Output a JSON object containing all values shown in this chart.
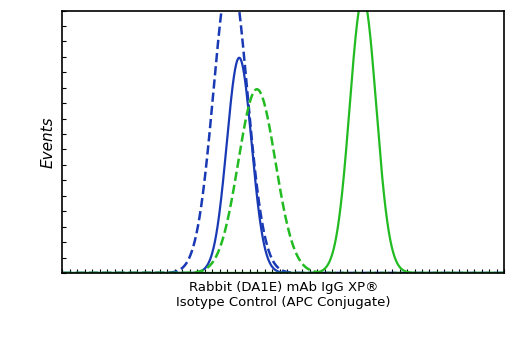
{
  "title": "",
  "xlabel_line1": "Rabbit (DA1E) mAb IgG XP®",
  "xlabel_line2": "Isotype Control (APC Conjugate)",
  "ylabel": "Events",
  "bg_color": "#ffffff",
  "axes_color": "#000000",
  "curves": [
    {
      "mu": 0.4,
      "sigma": 0.028,
      "peak": 0.82,
      "color": "#1a3ab5",
      "linestyle": "solid",
      "linewidth": 1.6,
      "label": "blue_solid"
    },
    {
      "mu": 0.38,
      "sigma": 0.038,
      "peak": 1.15,
      "color": "#1a3ab5",
      "linestyle": "dashed",
      "linewidth": 1.8,
      "label": "blue_dashed"
    },
    {
      "mu": 0.68,
      "sigma": 0.03,
      "peak": 1.05,
      "color": "#22bb22",
      "linestyle": "solid",
      "linewidth": 1.6,
      "label": "green_solid"
    },
    {
      "mu": 0.44,
      "sigma": 0.042,
      "peak": 0.7,
      "color": "#22bb22",
      "linestyle": "dashed",
      "linewidth": 1.8,
      "label": "green_dashed"
    }
  ],
  "xlim": [
    0.0,
    1.0
  ],
  "ylim": [
    0.0,
    1.0
  ],
  "x_nticks": 60,
  "y_nticks": 18
}
